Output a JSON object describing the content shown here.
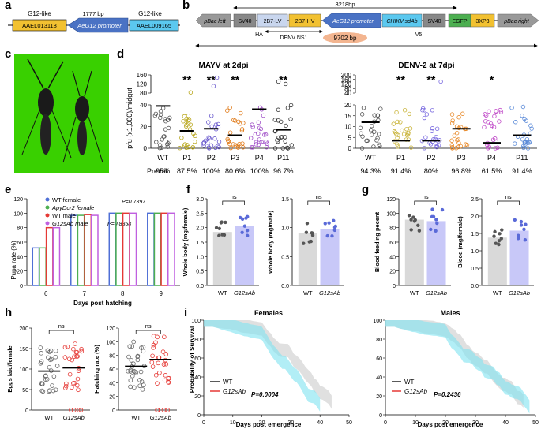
{
  "panels": {
    "a": "a",
    "b": "b",
    "c": "c",
    "d": "d",
    "e": "e",
    "f": "f",
    "g": "g",
    "h": "h",
    "i": "i"
  },
  "panel_a": {
    "left_label": "G12-like",
    "right_label": "G12-like",
    "size": "1777 bp",
    "left_gene": "AAEL013118",
    "promoter": "AeG12 promoter",
    "right_gene": "AAEL009165"
  },
  "panel_b": {
    "top_size": "3218bp",
    "bottom_size": "9702 bp",
    "elements": [
      "pBac left",
      "SV40",
      "2B7-LV",
      "2B7-HV",
      "AeG12 promoter",
      "CHIKV sdAb",
      "SV40",
      "EGFP",
      "3XP3",
      "pBac right"
    ],
    "ha": "HA",
    "ns1": "DENV NS1",
    "v5": "V5"
  },
  "panel_d": {
    "ylabel": "pfu (x1,000)/midgut",
    "preval_label": "Preval.",
    "mayv": {
      "title": "MAYV at 2dpi",
      "groups": [
        "WT",
        "P1",
        "P2",
        "P3",
        "P4",
        "P11"
      ],
      "prevalence": [
        "95%",
        "87.5%",
        "100%",
        "80.6%",
        "100%",
        "96.7%"
      ],
      "stars": [
        "",
        "**",
        "**",
        "**",
        "",
        "**"
      ],
      "colors": [
        "#555555",
        "#b8a61a",
        "#6a5acd",
        "#e07b1a",
        "#a050c8",
        "#333333"
      ],
      "means": [
        39,
        16,
        18,
        12,
        36,
        17
      ],
      "upper_ticks": [
        "80",
        "120",
        "160"
      ],
      "lower_ticks": [
        "0",
        "20",
        "40"
      ]
    },
    "denv": {
      "title": "DENV-2 at 7dpi",
      "groups": [
        "WT",
        "P1",
        "P2",
        "P3",
        "P4",
        "P11"
      ],
      "prevalence": [
        "94.3%",
        "91.4%",
        "80%",
        "96.8%",
        "61.5%",
        "91.4%"
      ],
      "stars": [
        "",
        "**",
        "**",
        "",
        "*",
        ""
      ],
      "colors": [
        "#555555",
        "#c9b43a",
        "#7a6be0",
        "#e88a2a",
        "#c04ac8",
        "#5a8ad8"
      ],
      "means": [
        12,
        3.5,
        3.5,
        9,
        2.5,
        6
      ],
      "upper_ticks": [
        "40",
        "80",
        "120",
        "160",
        "200"
      ],
      "lower_ticks": [
        "0",
        "5",
        "10",
        "15",
        "20"
      ]
    }
  },
  "panel_e": {
    "ylabel": "Pupa rate (%)",
    "xlabel": "Days post hatching",
    "days": [
      "6",
      "7",
      "8",
      "9"
    ],
    "yticks": [
      "0",
      "20",
      "40",
      "60",
      "80",
      "100",
      "120"
    ],
    "legend": [
      "WT female",
      "ApyDcr2 female",
      "WT male",
      "G12sAb male"
    ],
    "p1": "P=0.7397",
    "p2": "P=0.8858",
    "series_colors": [
      "#4f6fd6",
      "#4caf50",
      "#e53935",
      "#c060e0"
    ],
    "values": [
      [
        52,
        97,
        100,
        100
      ],
      [
        52,
        97,
        100,
        100
      ],
      [
        80,
        98,
        100,
        100
      ],
      [
        80,
        97,
        100,
        100
      ]
    ]
  },
  "panel_f": {
    "left": {
      "ylabel": "Whole body (mg/female)",
      "yticks": [
        "0.0",
        "0.5",
        "1.0",
        "1.5",
        "2.0",
        "2.5",
        "3.0"
      ],
      "ns": "ns",
      "values": [
        1.85,
        2.05
      ]
    },
    "right": {
      "ylabel": "Whole body (mg/male)",
      "yticks": [
        "0.0",
        "0.5",
        "1.0",
        "1.5"
      ],
      "ns": "ns",
      "values": [
        0.9,
        0.97
      ]
    },
    "groups": [
      "WT",
      "G12sAb"
    ]
  },
  "panel_g": {
    "left": {
      "ylabel": "Blood feeding pecent",
      "yticks": [
        "0",
        "20",
        "40",
        "60",
        "80",
        "100",
        "120"
      ],
      "ns": "ns",
      "values": [
        91,
        89
      ]
    },
    "right": {
      "ylabel": "Blood (mg/female)",
      "yticks": [
        "0.0",
        "0.5",
        "1.0",
        "1.5",
        "2.0",
        "2.5"
      ],
      "ns": "ns",
      "values": [
        1.38,
        1.58
      ]
    },
    "groups": [
      "WT",
      "G12sAb"
    ]
  },
  "panel_h": {
    "left": {
      "ylabel": "Eggs laid/female",
      "yticks": [
        "0",
        "50",
        "100",
        "150",
        "200"
      ],
      "ns": "ns",
      "means": [
        95,
        103
      ]
    },
    "right": {
      "ylabel": "Hatching rate (%)",
      "yticks": [
        "0",
        "20",
        "40",
        "60",
        "80",
        "100",
        "120"
      ],
      "ns": "ns",
      "means": [
        64,
        74
      ]
    },
    "groups": [
      "WT",
      "G12sAb"
    ]
  },
  "panel_i": {
    "ylabel": "Probability of Survival",
    "xlabel": "Days post emergence",
    "xticks": [
      "0",
      "10",
      "20",
      "30",
      "40",
      "50"
    ],
    "yticks": [
      "0",
      "20",
      "40",
      "60",
      "80",
      "100"
    ],
    "females": {
      "title": "Females",
      "p": "P=0.0004"
    },
    "males": {
      "title": "Males",
      "p": "P=0.2436"
    },
    "legend": [
      "WT",
      "G12sAb"
    ]
  }
}
